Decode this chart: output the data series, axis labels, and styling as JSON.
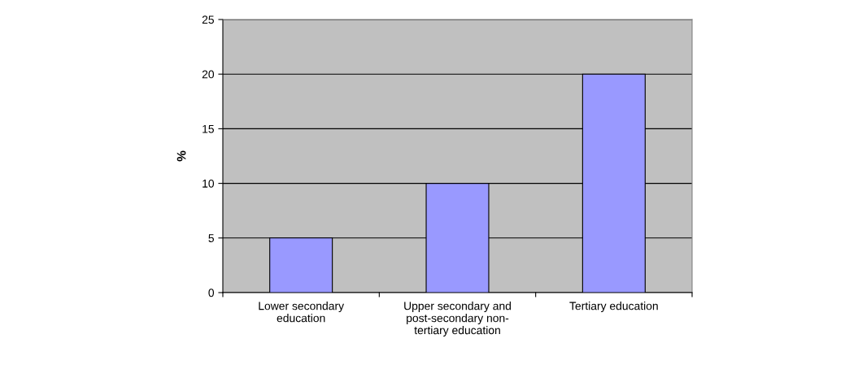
{
  "chart_data": {
    "type": "bar",
    "ylabel": "%",
    "categories": [
      "Lower secondary\neducation",
      "Upper secondary and\npost-secondary non-\ntertiary education",
      "Tertiary education"
    ],
    "values": [
      5,
      10,
      20
    ],
    "color": "#9999ff",
    "ylim": [
      0,
      25
    ],
    "yticks": [
      0,
      5,
      10,
      15,
      20,
      25
    ],
    "grid": "y",
    "legend": false
  }
}
